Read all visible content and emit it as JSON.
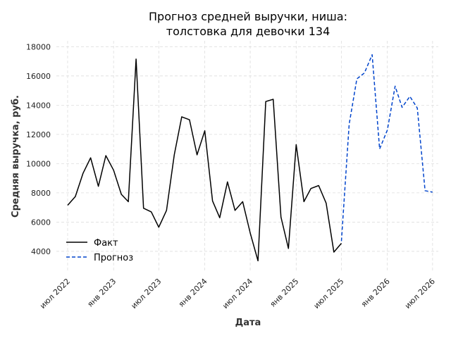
{
  "chart_data": {
    "type": "line",
    "title_line1": "Прогноз средней выручки, ниша:",
    "title_line2": "толстовка для девочки 134",
    "xlabel": "Дата",
    "ylabel": "Средняя выручка, руб.",
    "ylim": [
      2600,
      18400
    ],
    "yticks": [
      4000,
      6000,
      8000,
      10000,
      12000,
      14000,
      16000,
      18000
    ],
    "xlim": [
      "2022-05-17",
      "2026-07-24"
    ],
    "xticks": [
      {
        "date": "2022-07-01",
        "label": "июл 2022"
      },
      {
        "date": "2023-01-01",
        "label": "янв 2023"
      },
      {
        "date": "2023-07-01",
        "label": "июл 2023"
      },
      {
        "date": "2024-01-01",
        "label": "янв 2024"
      },
      {
        "date": "2024-07-01",
        "label": "июл 2024"
      },
      {
        "date": "2025-01-01",
        "label": "янв 2025"
      },
      {
        "date": "2025-07-01",
        "label": "июл 2025"
      },
      {
        "date": "2026-01-01",
        "label": "янв 2026"
      },
      {
        "date": "2026-07-01",
        "label": "июл 2026"
      }
    ],
    "grid": true,
    "legend_position": "lower-left",
    "series": [
      {
        "name": "Факт",
        "color": "#000000",
        "style": "solid",
        "points": [
          [
            "2022-07-01",
            7150
          ],
          [
            "2022-08-01",
            7750
          ],
          [
            "2022-09-01",
            9350
          ],
          [
            "2022-10-01",
            10400
          ],
          [
            "2022-11-01",
            8450
          ],
          [
            "2022-12-01",
            10550
          ],
          [
            "2023-01-01",
            9550
          ],
          [
            "2023-02-01",
            7900
          ],
          [
            "2023-03-01",
            7400
          ],
          [
            "2023-04-01",
            17150
          ],
          [
            "2023-05-01",
            6950
          ],
          [
            "2023-06-01",
            6700
          ],
          [
            "2023-07-01",
            5650
          ],
          [
            "2023-08-01",
            6800
          ],
          [
            "2023-09-01",
            10600
          ],
          [
            "2023-10-01",
            13200
          ],
          [
            "2023-11-01",
            13000
          ],
          [
            "2023-12-01",
            10600
          ],
          [
            "2024-01-01",
            12250
          ],
          [
            "2024-02-01",
            7450
          ],
          [
            "2024-03-01",
            6300
          ],
          [
            "2024-04-01",
            8750
          ],
          [
            "2024-05-01",
            6800
          ],
          [
            "2024-06-01",
            7400
          ],
          [
            "2024-07-01",
            5250
          ],
          [
            "2024-08-01",
            3350
          ],
          [
            "2024-09-01",
            14250
          ],
          [
            "2024-10-01",
            14400
          ],
          [
            "2024-11-01",
            6350
          ],
          [
            "2024-12-01",
            4200
          ],
          [
            "2025-01-01",
            11300
          ],
          [
            "2025-02-01",
            7400
          ],
          [
            "2025-03-01",
            8300
          ],
          [
            "2025-04-01",
            8500
          ],
          [
            "2025-05-01",
            7300
          ],
          [
            "2025-06-01",
            3950
          ],
          [
            "2025-07-01",
            4550
          ]
        ]
      },
      {
        "name": "Прогноз",
        "color": "#0044cc",
        "style": "dashed",
        "points": [
          [
            "2025-07-01",
            4700
          ],
          [
            "2025-08-01",
            12700
          ],
          [
            "2025-09-01",
            15800
          ],
          [
            "2025-10-01",
            16200
          ],
          [
            "2025-11-01",
            17450
          ],
          [
            "2025-12-01",
            11000
          ],
          [
            "2026-01-01",
            12300
          ],
          [
            "2026-02-01",
            15300
          ],
          [
            "2026-03-01",
            13850
          ],
          [
            "2026-04-01",
            14600
          ],
          [
            "2026-05-01",
            13800
          ],
          [
            "2026-06-01",
            8150
          ],
          [
            "2026-07-01",
            8050
          ]
        ]
      }
    ]
  }
}
